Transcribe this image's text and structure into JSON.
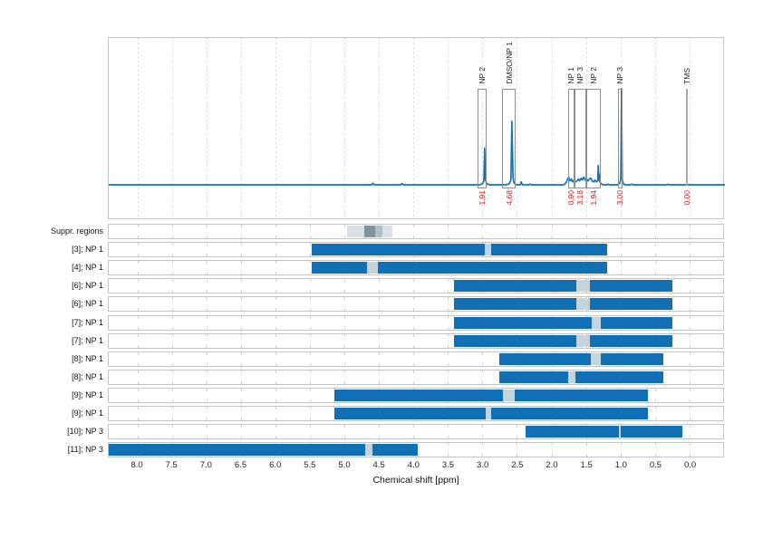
{
  "colors": {
    "trace_blue": "#1273b6",
    "bar_blue": "#1170b5",
    "integral_red": "#dd1111",
    "bar_gap_gray": "#c5d3db",
    "suppr_light": "#d9e1e7",
    "suppr_medium": "#aebfc9",
    "suppr_dark": "#7e93a0",
    "grid_gray": "#d9d9d9",
    "border_gray": "#c4c4c4",
    "peak_box_gray": "#8f8f8f"
  },
  "chart_data": [
    {
      "type": "line",
      "name": "1H NMR spectrum",
      "x_range_ppm": [
        8.42,
        -0.49
      ],
      "grid": "dashed vertical every 0.5 ppm from 8.0 to 0.0",
      "peaks": [
        {
          "label": "NP 2",
          "region_ppm": [
            3.07,
            2.94
          ],
          "integral": "1.91",
          "rel_intensity": 0.38,
          "marker": "box"
        },
        {
          "label": "DMSO/NP 1",
          "region_ppm": [
            2.71,
            2.52
          ],
          "integral": "4.68",
          "rel_intensity": 0.66,
          "marker": "box"
        },
        {
          "label": "NP 1",
          "region_ppm": [
            1.76,
            1.67
          ],
          "integral": "0.90",
          "rel_intensity": 0.08,
          "marker": "box"
        },
        {
          "label": "NP 3",
          "region_ppm": [
            1.67,
            1.5
          ],
          "integral": "3.18",
          "rel_intensity": 0.08,
          "marker": "box"
        },
        {
          "label": "NP 2",
          "region_ppm": [
            1.5,
            1.29
          ],
          "integral": "1.94",
          "rel_intensity": 0.2,
          "marker": "box"
        },
        {
          "label": "NP 3",
          "region_ppm": [
            1.04,
            0.97
          ],
          "integral": "3.00",
          "rel_intensity": 1.0,
          "marker": "box"
        },
        {
          "label": "TMS",
          "region_ppm": [
            0.05,
            0.03
          ],
          "integral": "0.00",
          "rel_intensity": 0.0,
          "marker": "line"
        }
      ],
      "trace_ppm_intensity": [
        [
          8.42,
          0
        ],
        [
          5.2,
          0
        ],
        [
          4.62,
          0
        ],
        [
          4.6,
          0.015
        ],
        [
          4.58,
          0
        ],
        [
          4.2,
          0
        ],
        [
          4.18,
          0.012
        ],
        [
          4.16,
          0
        ],
        [
          3.4,
          0
        ],
        [
          3.05,
          0
        ],
        [
          3.01,
          0.015
        ],
        [
          2.995,
          0.05
        ],
        [
          2.985,
          0.38
        ],
        [
          2.975,
          0.06
        ],
        [
          2.96,
          0.02
        ],
        [
          2.94,
          0.005
        ],
        [
          2.9,
          0
        ],
        [
          2.68,
          0
        ],
        [
          2.63,
          0.01
        ],
        [
          2.605,
          0.05
        ],
        [
          2.59,
          0.66
        ],
        [
          2.575,
          0.08
        ],
        [
          2.56,
          0.02
        ],
        [
          2.54,
          0.005
        ],
        [
          2.51,
          0
        ],
        [
          2.47,
          0
        ],
        [
          2.455,
          0.03
        ],
        [
          2.44,
          0
        ],
        [
          2.35,
          0
        ],
        [
          2.33,
          0.008
        ],
        [
          2.31,
          0
        ],
        [
          1.84,
          0
        ],
        [
          1.81,
          0.02
        ],
        [
          1.79,
          0.05
        ],
        [
          1.77,
          0.08
        ],
        [
          1.75,
          0.04
        ],
        [
          1.73,
          0.06
        ],
        [
          1.71,
          0.03
        ],
        [
          1.69,
          0.05
        ],
        [
          1.67,
          0.03
        ],
        [
          1.65,
          0.04
        ],
        [
          1.63,
          0.06
        ],
        [
          1.61,
          0.04
        ],
        [
          1.59,
          0.07
        ],
        [
          1.57,
          0.05
        ],
        [
          1.55,
          0.08
        ],
        [
          1.53,
          0.05
        ],
        [
          1.51,
          0.06
        ],
        [
          1.49,
          0.04
        ],
        [
          1.47,
          0.06
        ],
        [
          1.45,
          0.07
        ],
        [
          1.43,
          0.04
        ],
        [
          1.41,
          0.03
        ],
        [
          1.39,
          0.05
        ],
        [
          1.37,
          0.03
        ],
        [
          1.35,
          0.04
        ],
        [
          1.342,
          0.2
        ],
        [
          1.334,
          0.05
        ],
        [
          1.326,
          0.11
        ],
        [
          1.318,
          0.03
        ],
        [
          1.3,
          0.012
        ],
        [
          1.28,
          0
        ],
        [
          1.22,
          0
        ],
        [
          1.2,
          0.008
        ],
        [
          1.18,
          0
        ],
        [
          1.06,
          0
        ],
        [
          1.03,
          0.02
        ],
        [
          1.015,
          0.06
        ],
        [
          1.005,
          1.0
        ],
        [
          0.995,
          0.05
        ],
        [
          0.98,
          0.012
        ],
        [
          0.96,
          0
        ],
        [
          0.88,
          0
        ],
        [
          0.86,
          0.008
        ],
        [
          0.84,
          0
        ],
        [
          0.35,
          0
        ],
        [
          0.33,
          0.006
        ],
        [
          0.31,
          0
        ],
        [
          -0.49,
          0
        ]
      ]
    },
    {
      "type": "bar",
      "name": "Signal assignment regions",
      "xlabel": "Chemical shift [ppm]",
      "xticks": [
        "8.0",
        "7.5",
        "7.0",
        "6.5",
        "6.0",
        "5.5",
        "5.0",
        "4.5",
        "4.0",
        "3.5",
        "3.0",
        "2.5",
        "2.0",
        "1.5",
        "1.0",
        "0.5",
        "0.0"
      ],
      "rows": [
        {
          "label": "Suppr. regions",
          "type": "suppression",
          "segments": [
            {
              "ppm": [
                4.97,
                4.72
              ],
              "shade": "light"
            },
            {
              "ppm": [
                4.72,
                4.55
              ],
              "shade": "dark"
            },
            {
              "ppm": [
                4.55,
                4.45
              ],
              "shade": "medium"
            },
            {
              "ppm": [
                4.45,
                4.31
              ],
              "shade": "light"
            }
          ]
        },
        {
          "label": "[3]; NP 1",
          "bar_ppm": [
            5.47,
            1.19
          ],
          "excluded_ppm": [
            [
              2.96,
              2.87
            ]
          ]
        },
        {
          "label": "[4]; NP 1",
          "bar_ppm": [
            5.47,
            1.19
          ],
          "excluded_ppm": [
            [
              4.68,
              4.52
            ]
          ]
        },
        {
          "label": "[6]; NP 1",
          "bar_ppm": [
            3.41,
            0.25
          ],
          "excluded_ppm": [
            [
              1.64,
              1.44
            ]
          ]
        },
        {
          "label": "[6]; NP 1",
          "bar_ppm": [
            3.41,
            0.25
          ],
          "excluded_ppm": [
            [
              1.64,
              1.44
            ]
          ]
        },
        {
          "label": "[7]; NP 1",
          "bar_ppm": [
            3.41,
            0.25
          ],
          "excluded_ppm": [
            [
              1.42,
              1.28
            ]
          ]
        },
        {
          "label": "[7]; NP 1",
          "bar_ppm": [
            3.41,
            0.25
          ],
          "excluded_ppm": [
            [
              1.64,
              1.44
            ]
          ]
        },
        {
          "label": "[8]; NP 1",
          "bar_ppm": [
            2.75,
            0.38
          ],
          "excluded_ppm": [
            [
              1.43,
              1.28
            ]
          ]
        },
        {
          "label": "[8]; NP 1",
          "bar_ppm": [
            2.75,
            0.38
          ],
          "excluded_ppm": [
            [
              1.76,
              1.65
            ]
          ]
        },
        {
          "label": "[9]; NP 1",
          "bar_ppm": [
            5.15,
            0.6
          ],
          "excluded_ppm": [
            [
              2.7,
              2.53
            ]
          ]
        },
        {
          "label": "[9]; NP 1",
          "bar_ppm": [
            5.15,
            0.6
          ],
          "excluded_ppm": [
            [
              2.95,
              2.87
            ]
          ]
        },
        {
          "label": "[10]; NP 3",
          "bar_ppm": [
            2.38,
            0.1
          ],
          "excluded_ppm": [
            [
              1.02,
              0.99
            ]
          ]
        },
        {
          "label": "[11]; NP 3",
          "bar_ppm": [
            8.42,
            3.94
          ],
          "excluded_ppm": [
            [
              4.7,
              4.59
            ]
          ]
        }
      ]
    }
  ]
}
